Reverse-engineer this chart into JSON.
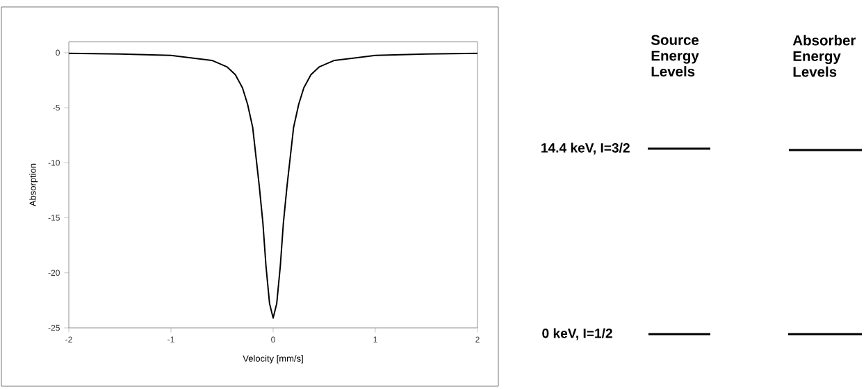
{
  "chart_data": [
    {
      "type": "line",
      "xlabel": "Velocity [mm/s]",
      "ylabel": "Absorption",
      "x": [
        -2,
        -1.5,
        -1,
        -0.6,
        -0.45,
        -0.37,
        -0.3,
        -0.25,
        -0.2,
        -0.136,
        -0.1,
        -0.07,
        -0.035,
        0,
        0.035,
        0.07,
        0.1,
        0.136,
        0.2,
        0.25,
        0.3,
        0.37,
        0.45,
        0.6,
        1,
        1.5,
        2
      ],
      "series": [
        {
          "color": "#000000",
          "values": [
            -0.06,
            -0.12,
            -0.25,
            -0.7,
            -1.3,
            -2.0,
            -3.2,
            -4.7,
            -6.8,
            -12.1,
            -15.5,
            -19.4,
            -22.8,
            -24.1,
            -22.8,
            -19.4,
            -15.5,
            -12.1,
            -6.8,
            -4.7,
            -3.2,
            -2.0,
            -1.3,
            -0.7,
            -0.25,
            -0.12,
            -0.06
          ]
        }
      ],
      "xlim": [
        -2,
        2
      ],
      "ylim": [
        -25,
        1
      ],
      "xticks": [
        -2,
        -1,
        0,
        1,
        2
      ],
      "yticks": [
        -25,
        -20,
        -15,
        -10,
        -5,
        0
      ],
      "grid": false,
      "marker": "none",
      "line_style": "solid"
    },
    {
      "type": "other",
      "annotations": [
        "Source Energy Levels",
        "Absorber Energy Levels",
        "14.4 keV, I=3/2",
        "0 keV, I=1/2"
      ]
    }
  ]
}
